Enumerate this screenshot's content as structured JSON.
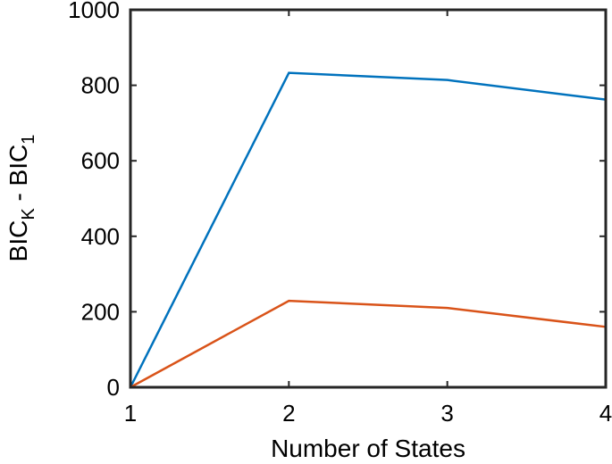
{
  "chart_data": {
    "type": "line",
    "title": "",
    "xlabel": "Number of States",
    "ylabel_main": "BIC",
    "ylabel_sub1": "K",
    "ylabel_mid": " - BIC",
    "ylabel_sub2": "1",
    "xlim": [
      1,
      4
    ],
    "ylim": [
      0,
      1000
    ],
    "xticks": [
      "1",
      "2",
      "3",
      "4"
    ],
    "yticks": [
      "0",
      "200",
      "400",
      "600",
      "800",
      "1000"
    ],
    "grid": false,
    "x": [
      1,
      2,
      3,
      4
    ],
    "series": [
      {
        "values": [
          0,
          833,
          814,
          762
        ],
        "color": "#0072BD"
      },
      {
        "values": [
          0,
          229,
          210,
          160
        ],
        "color": "#D95319"
      }
    ]
  }
}
